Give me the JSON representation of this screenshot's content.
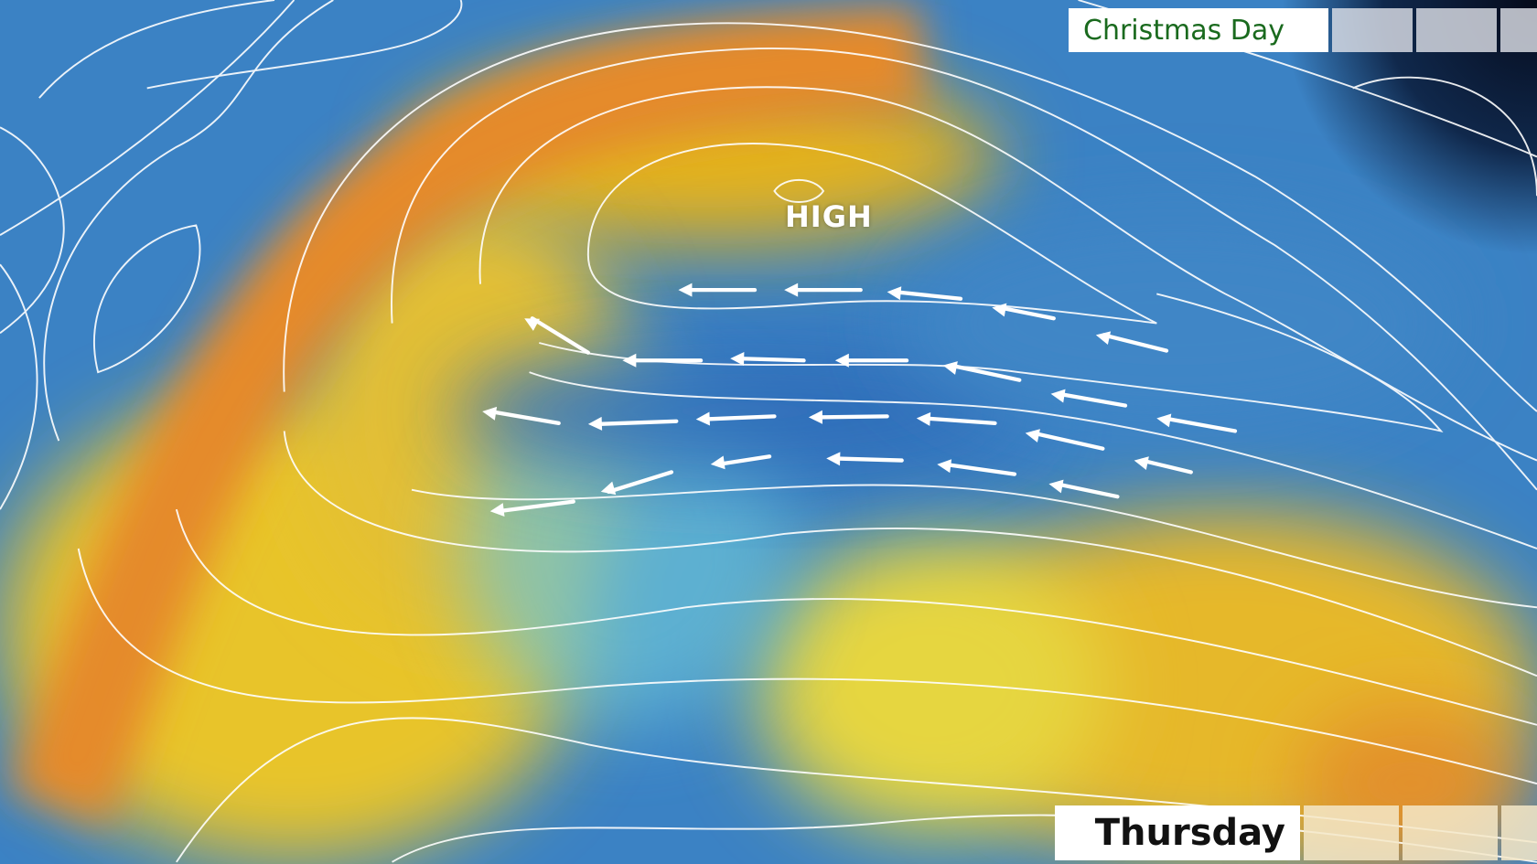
{
  "map": {
    "pressure_label": "HIGH",
    "top_label": "Christmas Day",
    "bottom_label": "Thursday",
    "wind_direction": "easterly",
    "colors": {
      "cold_air": "#3b82c4",
      "mild_air": "#e8c42a",
      "warm_air": "#e88e2a",
      "isobars": "#ffffff",
      "label_text_top": "#1a6a1e"
    },
    "icons": [
      "wind-arrow-icon"
    ]
  }
}
